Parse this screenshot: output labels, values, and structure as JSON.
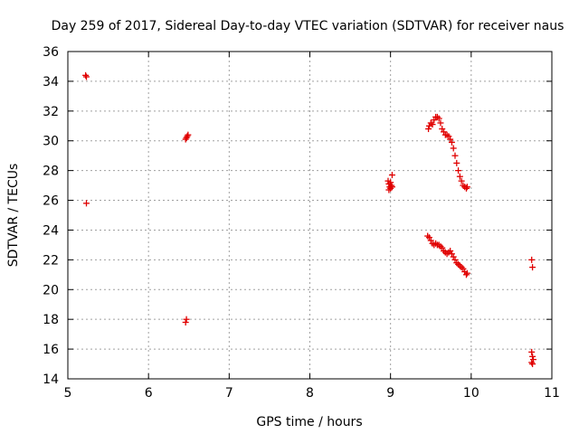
{
  "chart_data": {
    "type": "scatter",
    "title": "Day 259 of 2017, Sidereal Day-to-day VTEC variation (SDTVAR) for receiver naus",
    "xlabel": "GPS time / hours",
    "ylabel": "SDTVAR / TECUs",
    "xlim": [
      5,
      11
    ],
    "ylim": [
      14,
      36
    ],
    "xticks": [
      5,
      6,
      7,
      8,
      9,
      10,
      11
    ],
    "yticks": [
      14,
      16,
      18,
      20,
      22,
      24,
      26,
      28,
      30,
      32,
      34,
      36
    ],
    "grid": true,
    "marker": "+",
    "color": "#e00000",
    "series": [
      {
        "name": "SDTVAR",
        "x": [
          5.22,
          5.23,
          5.23,
          6.46,
          6.47,
          6.48,
          6.49,
          6.46,
          6.47,
          8.97,
          8.98,
          8.99,
          9.0,
          9.01,
          9.02,
          8.98,
          9.0,
          9.02,
          9.47,
          9.48,
          9.5,
          9.52,
          9.54,
          9.56,
          9.58,
          9.6,
          9.62,
          9.64,
          9.66,
          9.68,
          9.7,
          9.72,
          9.74,
          9.76,
          9.78,
          9.8,
          9.82,
          9.84,
          9.86,
          9.88,
          9.9,
          9.92,
          9.94,
          9.95,
          9.46,
          9.48,
          9.5,
          9.52,
          9.54,
          9.56,
          9.58,
          9.6,
          9.62,
          9.64,
          9.66,
          9.68,
          9.7,
          9.72,
          9.74,
          9.76,
          9.78,
          9.8,
          9.82,
          9.84,
          9.86,
          9.88,
          9.9,
          9.92,
          9.94,
          9.95,
          10.75,
          10.76,
          10.75,
          10.76,
          10.77,
          10.75,
          10.76
        ],
        "y": [
          34.4,
          34.3,
          25.8,
          30.1,
          30.2,
          30.3,
          30.4,
          17.8,
          18.0,
          27.3,
          27.1,
          26.9,
          26.8,
          27.0,
          27.7,
          26.7,
          27.2,
          26.9,
          30.8,
          31.0,
          31.2,
          31.1,
          31.4,
          31.6,
          31.6,
          31.5,
          31.2,
          30.8,
          30.6,
          30.4,
          30.4,
          30.3,
          30.1,
          29.9,
          29.5,
          29.0,
          28.5,
          28.0,
          27.6,
          27.3,
          27.0,
          26.9,
          26.8,
          26.9,
          23.6,
          23.5,
          23.3,
          23.1,
          23.0,
          23.1,
          23.0,
          23.0,
          22.9,
          22.8,
          22.6,
          22.5,
          22.4,
          22.5,
          22.6,
          22.4,
          22.2,
          22.0,
          21.8,
          21.7,
          21.6,
          21.5,
          21.4,
          21.2,
          21.0,
          21.1,
          22.0,
          21.5,
          15.8,
          15.5,
          15.3,
          15.1,
          15.0
        ]
      }
    ]
  }
}
